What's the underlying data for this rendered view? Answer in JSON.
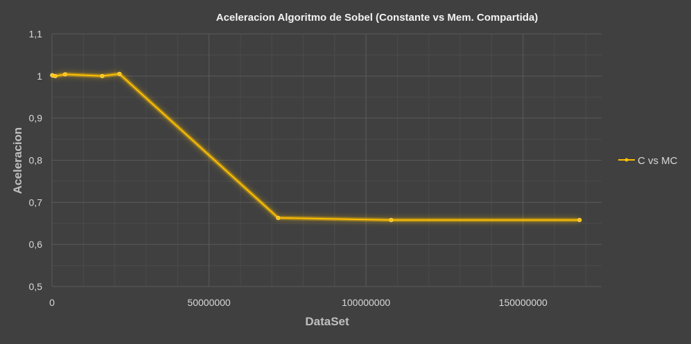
{
  "colors": {
    "background": "#404040",
    "grid_major": "#5a5a5a",
    "grid_minor": "#4b4b4b",
    "axis_text": "#d9d9d9",
    "title_text": "#f2f2f2",
    "series_line": "#ffc000"
  },
  "chart_data": {
    "type": "scatter",
    "title": "Aceleracion Algoritmo de Sobel (Constante vs Mem. Compartida)",
    "xlabel": "DataSet",
    "ylabel": "Aceleracion",
    "xlim": [
      0,
      175000000
    ],
    "ylim": [
      0.5,
      1.1
    ],
    "xticks": [
      0,
      50000000,
      100000000,
      150000000
    ],
    "xtick_labels": [
      "0",
      "50000000",
      "100000000",
      "150000000"
    ],
    "yticks": [
      0.5,
      0.6,
      0.7,
      0.8,
      0.9,
      1.0,
      1.1
    ],
    "ytick_labels": [
      "0,5",
      "0,6",
      "0,7",
      "0,8",
      "0,9",
      "1",
      "1,1"
    ],
    "grid": true,
    "legend_position": "right",
    "series": [
      {
        "name": "C vs MC",
        "color": "#ffc000",
        "x": [
          65536,
          262144,
          1048576,
          4194304,
          16000000,
          21500000,
          72000000,
          108000000,
          168000000
        ],
        "y": [
          1.002,
          1.001,
          1.0,
          1.004,
          1.0,
          1.005,
          0.663,
          0.658,
          0.658
        ]
      }
    ]
  }
}
